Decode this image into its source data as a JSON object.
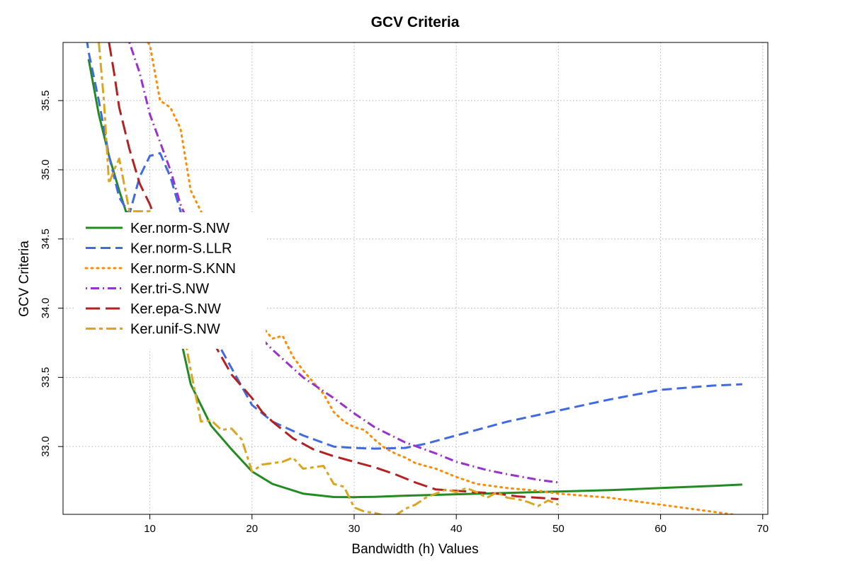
{
  "chart_data": {
    "type": "line",
    "title": "GCV Criteria",
    "xlabel": "Bandwidth (h) Values",
    "ylabel": "GCV Criteria",
    "xlim": [
      1.5,
      70.5
    ],
    "ylim": [
      32.51,
      35.92
    ],
    "xticks": [
      10,
      20,
      30,
      40,
      50,
      60,
      70
    ],
    "yticks": [
      33.0,
      33.5,
      34.0,
      34.5,
      35.0,
      35.5
    ],
    "ytick_labels": [
      "33.0",
      "33.5",
      "34.0",
      "34.5",
      "35.0",
      "35.5"
    ],
    "grid": true,
    "legend_position": "left",
    "series": [
      {
        "name": "Ker.norm-S.NW",
        "color": "#228B22",
        "dash": "solid",
        "points": [
          [
            4,
            35.8
          ],
          [
            5,
            35.4
          ],
          [
            6,
            35.1
          ],
          [
            7,
            34.85
          ],
          [
            8,
            34.62
          ],
          [
            10,
            34.35
          ],
          [
            12,
            34.12
          ],
          [
            14,
            33.45
          ],
          [
            15,
            33.3
          ],
          [
            16,
            33.15
          ],
          [
            18,
            32.98
          ],
          [
            20,
            32.82
          ],
          [
            22,
            32.73
          ],
          [
            25,
            32.66
          ],
          [
            28,
            32.635
          ],
          [
            30,
            32.634
          ],
          [
            32,
            32.637
          ],
          [
            35,
            32.645
          ],
          [
            40,
            32.655
          ],
          [
            45,
            32.665
          ],
          [
            50,
            32.675
          ],
          [
            55,
            32.685
          ],
          [
            60,
            32.7
          ],
          [
            65,
            32.715
          ],
          [
            68,
            32.725
          ]
        ]
      },
      {
        "name": "Ker.norm-S.LLR",
        "color": "#4169E1",
        "dash": "long",
        "points": [
          [
            3.8,
            35.95
          ],
          [
            4,
            35.85
          ],
          [
            5,
            35.5
          ],
          [
            6,
            35.1
          ],
          [
            7,
            34.8
          ],
          [
            8,
            34.68
          ],
          [
            9,
            34.95
          ],
          [
            10,
            35.1
          ],
          [
            11,
            35.12
          ],
          [
            12,
            34.95
          ],
          [
            13,
            34.7
          ],
          [
            15,
            34.3
          ],
          [
            17,
            33.7
          ],
          [
            20,
            33.3
          ],
          [
            22,
            33.18
          ],
          [
            25,
            33.08
          ],
          [
            28,
            33.0
          ],
          [
            30,
            32.99
          ],
          [
            32,
            32.985
          ],
          [
            35,
            32.99
          ],
          [
            37,
            33.02
          ],
          [
            40,
            33.08
          ],
          [
            45,
            33.18
          ],
          [
            50,
            33.26
          ],
          [
            55,
            33.34
          ],
          [
            60,
            33.41
          ],
          [
            65,
            33.44
          ],
          [
            68,
            33.45
          ]
        ]
      },
      {
        "name": "Ker.norm-S.KNN",
        "color": "#FF8C00",
        "dash": "dotted",
        "points": [
          [
            9.5,
            35.95
          ],
          [
            10,
            35.9
          ],
          [
            11,
            35.5
          ],
          [
            12,
            35.45
          ],
          [
            13,
            35.3
          ],
          [
            14,
            34.85
          ],
          [
            15,
            34.7
          ],
          [
            18,
            34.2
          ],
          [
            20,
            33.95
          ],
          [
            22,
            33.78
          ],
          [
            23,
            33.8
          ],
          [
            24,
            33.65
          ],
          [
            25,
            33.55
          ],
          [
            27,
            33.38
          ],
          [
            28,
            33.25
          ],
          [
            29,
            33.18
          ],
          [
            30,
            33.14
          ],
          [
            31,
            33.12
          ],
          [
            32,
            33.05
          ],
          [
            33,
            32.99
          ],
          [
            34,
            32.95
          ],
          [
            35,
            32.92
          ],
          [
            36,
            32.88
          ],
          [
            38,
            32.84
          ],
          [
            40,
            32.78
          ],
          [
            42,
            32.73
          ],
          [
            45,
            32.7
          ],
          [
            48,
            32.68
          ],
          [
            50,
            32.66
          ],
          [
            55,
            32.63
          ],
          [
            60,
            32.58
          ],
          [
            65,
            32.53
          ],
          [
            67,
            32.51
          ]
        ]
      },
      {
        "name": "Ker.tri-S.NW",
        "color": "#9932CC",
        "dash": "dotdash",
        "points": [
          [
            8,
            35.92
          ],
          [
            9,
            35.7
          ],
          [
            10,
            35.4
          ],
          [
            12,
            35.0
          ],
          [
            13,
            34.75
          ],
          [
            15,
            34.4
          ],
          [
            18,
            34.05
          ],
          [
            20,
            33.85
          ],
          [
            22,
            33.7
          ],
          [
            25,
            33.5
          ],
          [
            28,
            33.35
          ],
          [
            30,
            33.24
          ],
          [
            32,
            33.14
          ],
          [
            35,
            33.03
          ],
          [
            38,
            32.95
          ],
          [
            40,
            32.89
          ],
          [
            43,
            32.83
          ],
          [
            45,
            32.8
          ],
          [
            48,
            32.76
          ],
          [
            50,
            32.74
          ]
        ]
      },
      {
        "name": "Ker.epa-S.NW",
        "color": "#B22222",
        "dash": "longdash",
        "points": [
          [
            6,
            35.92
          ],
          [
            6.5,
            35.7
          ],
          [
            7,
            35.45
          ],
          [
            8,
            35.15
          ],
          [
            9,
            34.9
          ],
          [
            10,
            34.75
          ],
          [
            12,
            34.35
          ],
          [
            14,
            34.05
          ],
          [
            16,
            33.78
          ],
          [
            18,
            33.52
          ],
          [
            20,
            33.35
          ],
          [
            21,
            33.25
          ],
          [
            22,
            33.18
          ],
          [
            24,
            33.06
          ],
          [
            26,
            32.98
          ],
          [
            28,
            32.93
          ],
          [
            30,
            32.89
          ],
          [
            32,
            32.85
          ],
          [
            34,
            32.8
          ],
          [
            36,
            32.74
          ],
          [
            38,
            32.69
          ],
          [
            40,
            32.68
          ],
          [
            42,
            32.67
          ],
          [
            44,
            32.66
          ],
          [
            46,
            32.64
          ],
          [
            48,
            32.63
          ],
          [
            50,
            32.62
          ]
        ]
      },
      {
        "name": "Ker.unif-S.NW",
        "color": "#DAA520",
        "dash": "twodash",
        "points": [
          [
            5,
            35.92
          ],
          [
            5.5,
            35.5
          ],
          [
            6,
            34.9
          ],
          [
            6.5,
            35.0
          ],
          [
            7,
            35.08
          ],
          [
            8,
            34.7
          ],
          [
            10,
            34.7
          ],
          [
            12,
            34.2
          ],
          [
            13,
            33.95
          ],
          [
            14,
            33.55
          ],
          [
            15,
            33.18
          ],
          [
            16,
            33.19
          ],
          [
            17,
            33.12
          ],
          [
            18,
            33.13
          ],
          [
            19,
            33.05
          ],
          [
            20,
            32.82
          ],
          [
            21,
            32.87
          ],
          [
            22,
            32.88
          ],
          [
            23,
            32.89
          ],
          [
            24,
            32.92
          ],
          [
            25,
            32.84
          ],
          [
            26,
            32.85
          ],
          [
            27,
            32.86
          ],
          [
            28,
            32.73
          ],
          [
            29,
            32.71
          ],
          [
            30,
            32.56
          ],
          [
            31,
            32.53
          ],
          [
            32,
            32.52
          ],
          [
            33,
            32.5
          ],
          [
            34,
            32.5
          ],
          [
            35,
            32.55
          ],
          [
            36,
            32.58
          ],
          [
            37,
            32.63
          ],
          [
            38,
            32.66
          ],
          [
            39,
            32.69
          ],
          [
            40,
            32.67
          ],
          [
            41,
            32.7
          ],
          [
            42,
            32.67
          ],
          [
            43,
            32.63
          ],
          [
            44,
            32.67
          ],
          [
            45,
            32.63
          ],
          [
            46,
            32.62
          ],
          [
            47,
            32.6
          ],
          [
            48,
            32.57
          ],
          [
            49,
            32.61
          ],
          [
            50,
            32.58
          ]
        ]
      }
    ]
  }
}
